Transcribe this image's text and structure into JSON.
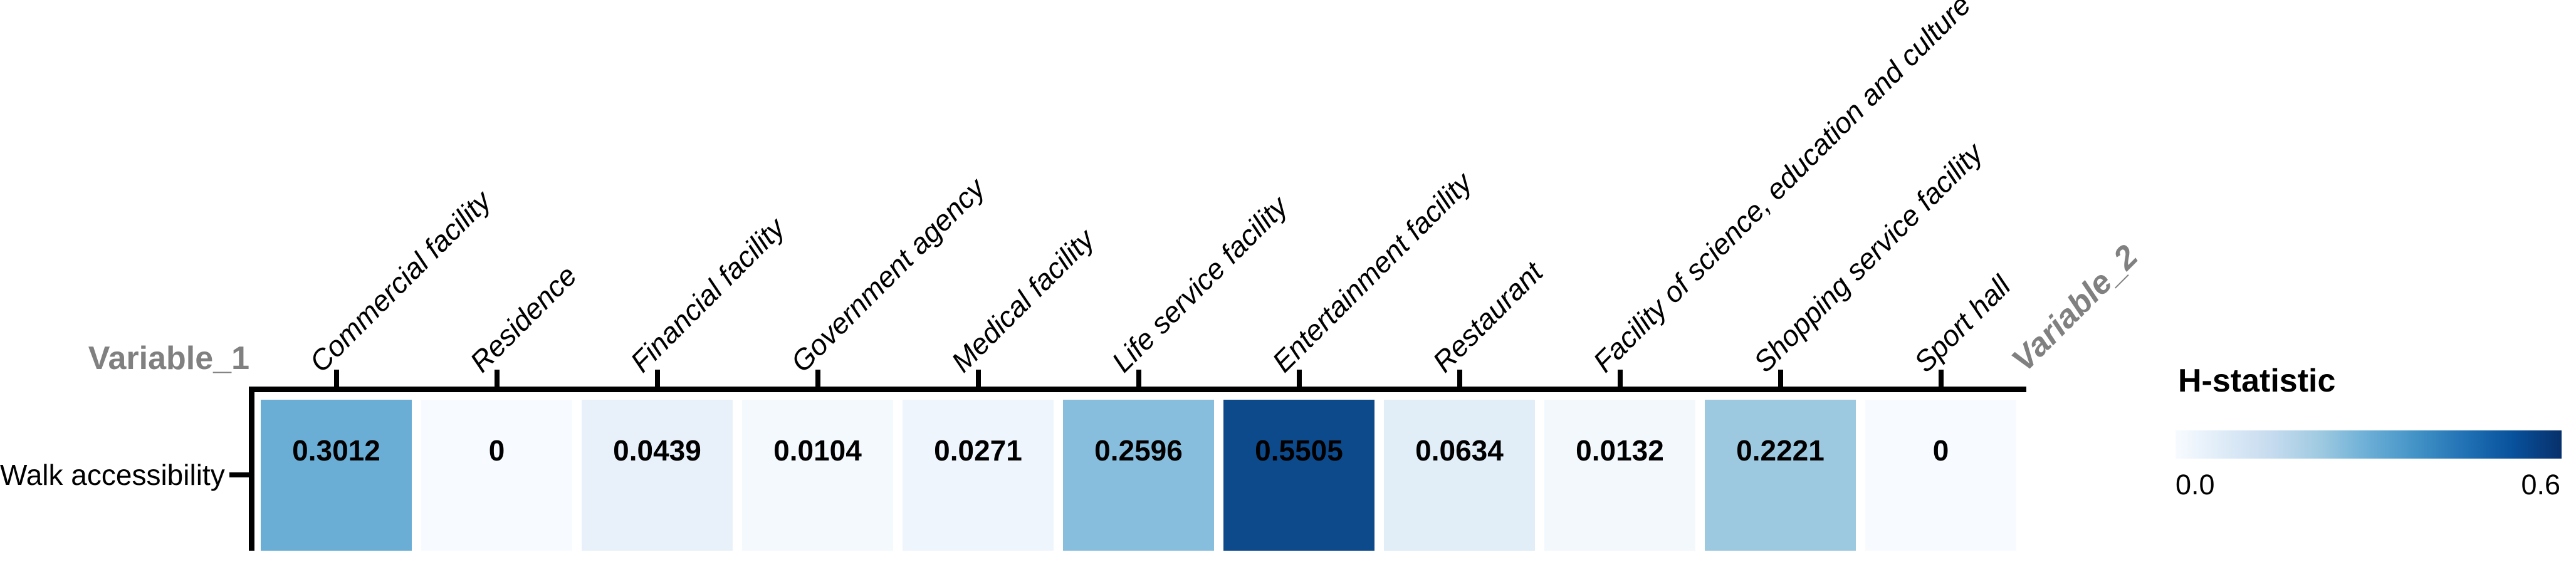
{
  "chart": {
    "y_axis_title": "Variable_1",
    "x_axis_title": "Variable_2",
    "row_label": "Walk accessibility",
    "legend_title": "H-statistic",
    "colors": {
      "axis": "#000000",
      "axis_title_gray": "#808080",
      "text": "#000000",
      "background": "#ffffff"
    }
  },
  "chart_data": {
    "type": "heatmap",
    "title": "",
    "xlabel": "Variable_2",
    "ylabel": "Variable_1",
    "x_categories": [
      "Commercial facility",
      "Residence",
      "Financial facility",
      "Government agency",
      "Medical facility",
      "Life service facility",
      "Entertainment facility",
      "Restaurant",
      "Facility of science, education and culture",
      "Shopping service facility",
      "Sport hall"
    ],
    "y_categories": [
      "Walk accessibility"
    ],
    "values": [
      [
        0.3012,
        0,
        0.0439,
        0.0104,
        0.0271,
        0.2596,
        0.5505,
        0.0634,
        0.0132,
        0.2221,
        0
      ]
    ],
    "value_labels": [
      [
        "0.3012",
        "0",
        "0.0439",
        "0.0104",
        "0.0271",
        "0.2596",
        "0.5505",
        "0.0634",
        "0.0132",
        "0.2221",
        "0"
      ]
    ],
    "cell_colors": [
      [
        "#6aaed6",
        "#f7fbff",
        "#e8f1fa",
        "#f4f9fe",
        "#eef5fc",
        "#88bedd",
        "#0d4a8c",
        "#e1edf7",
        "#f3f8fd",
        "#9dc9e0",
        "#f7fbff"
      ]
    ],
    "grid": false,
    "legend_position": "right",
    "colorbar": {
      "title": "H-statistic",
      "min": 0.0,
      "max": 0.6,
      "tick_labels": [
        "0.0",
        "0.6"
      ],
      "colormap": "Blues",
      "gradient_stops": [
        "#f7fbff",
        "#deebf7",
        "#c6dbef",
        "#9ecae1",
        "#6baed6",
        "#4292c6",
        "#2171b5",
        "#08519c",
        "#08306b"
      ]
    }
  }
}
